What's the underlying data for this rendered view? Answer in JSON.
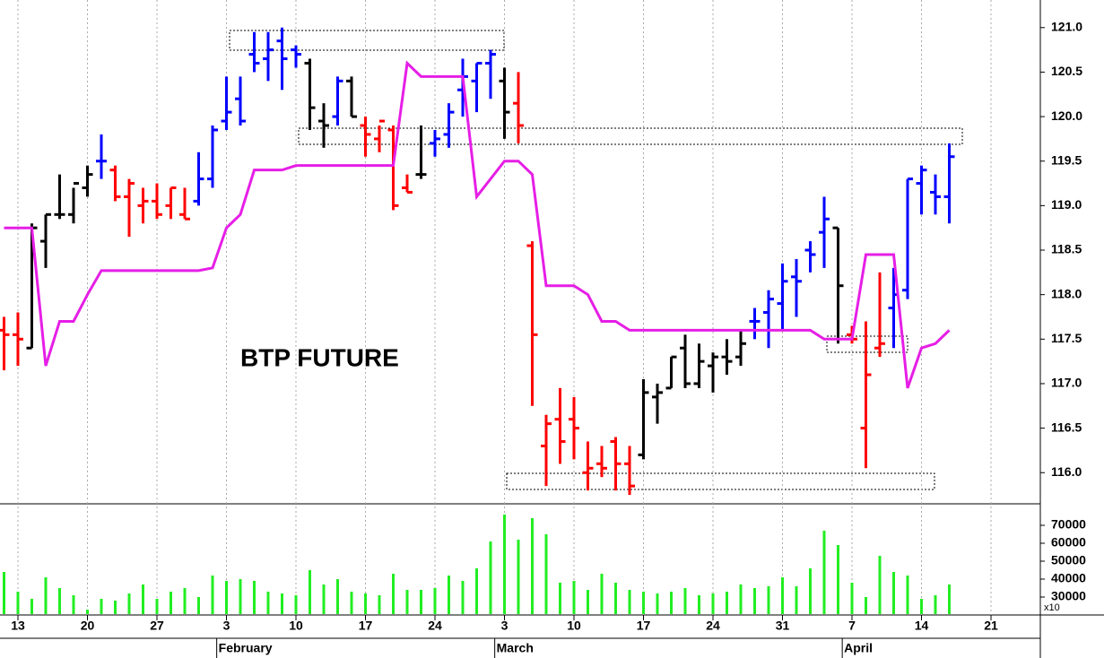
{
  "chart_data": [
    {
      "type": "ohlc",
      "title": "BTP FUTURE",
      "categories": [
        null,
        "13",
        null,
        null,
        null,
        null,
        "20",
        null,
        null,
        null,
        null,
        "27",
        null,
        null,
        null,
        null,
        "3",
        null,
        null,
        null,
        null,
        "10",
        null,
        null,
        null,
        null,
        "17",
        null,
        null,
        null,
        null,
        "24",
        null,
        null,
        null,
        null,
        "3",
        null,
        null,
        null,
        null,
        "10",
        null,
        null,
        null,
        null,
        "17",
        null,
        null,
        null,
        null,
        "24",
        null,
        null,
        null,
        null,
        "31",
        null,
        null,
        null,
        null,
        "7",
        null,
        null,
        null,
        null,
        "14",
        null,
        null,
        null,
        null,
        "21"
      ],
      "months": [
        null,
        null,
        null,
        null,
        null,
        null,
        null,
        null,
        null,
        null,
        null,
        null,
        null,
        null,
        null,
        null,
        "February",
        null,
        null,
        null,
        null,
        null,
        null,
        null,
        null,
        null,
        null,
        null,
        null,
        null,
        null,
        null,
        null,
        null,
        null,
        null,
        "March",
        null,
        null,
        null,
        null,
        null,
        null,
        null,
        null,
        null,
        null,
        null,
        null,
        null,
        null,
        null,
        null,
        null,
        null,
        null,
        null,
        null,
        null,
        null,
        null,
        "April",
        null,
        null,
        null,
        null,
        null,
        null,
        null,
        null,
        null,
        null
      ],
      "open": [
        117.6,
        117.55,
        117.4,
        118.6,
        118.9,
        118.9,
        119.2,
        119.5,
        119.4,
        119.1,
        119.0,
        119.05,
        119.0,
        118.9,
        119.05,
        119.3,
        119.95,
        120.2,
        120.7,
        120.65,
        120.85,
        120.75,
        120.6,
        119.95,
        120.0,
        120.4,
        119.9,
        119.75,
        119.85,
        119.2,
        119.35,
        119.7,
        119.8,
        120.3,
        120.4,
        120.6,
        120.4,
        120.15,
        118.55,
        116.3,
        116.6,
        116.6,
        116.0,
        116.1,
        116.35,
        116.1,
        116.2,
        116.85,
        116.95,
        117.4,
        117.0,
        117.2,
        117.3,
        117.3,
        117.7,
        117.8,
        117.9,
        118.2,
        118.5,
        118.7,
        118.75,
        117.55,
        116.5,
        117.4,
        117.85,
        118.05,
        119.25,
        119.15,
        119.1,
        null,
        null,
        null
      ],
      "high": [
        117.75,
        117.8,
        118.8,
        118.9,
        119.35,
        119.2,
        119.45,
        119.8,
        119.45,
        119.3,
        119.2,
        119.25,
        119.2,
        119.2,
        119.6,
        119.9,
        120.45,
        120.45,
        120.95,
        120.95,
        121.0,
        120.8,
        120.65,
        120.15,
        120.45,
        120.45,
        120.0,
        119.9,
        119.9,
        119.35,
        119.9,
        119.85,
        120.15,
        120.65,
        120.6,
        120.75,
        120.55,
        120.5,
        118.6,
        116.65,
        116.95,
        116.85,
        116.35,
        116.3,
        116.4,
        116.3,
        117.05,
        117.0,
        117.3,
        117.55,
        117.45,
        117.35,
        117.5,
        117.6,
        117.85,
        118.05,
        118.35,
        118.4,
        118.6,
        119.1,
        118.75,
        117.65,
        117.7,
        118.25,
        118.3,
        119.3,
        119.45,
        119.35,
        119.7,
        null,
        null,
        null
      ],
      "low": [
        117.15,
        117.2,
        117.4,
        118.3,
        118.85,
        118.8,
        119.1,
        119.3,
        119.05,
        118.65,
        118.8,
        118.85,
        118.85,
        118.85,
        119.0,
        119.2,
        119.85,
        119.9,
        120.5,
        120.4,
        120.3,
        120.55,
        119.85,
        119.65,
        119.9,
        120.0,
        119.55,
        119.6,
        118.95,
        119.15,
        119.3,
        119.55,
        119.65,
        120.0,
        120.05,
        120.2,
        119.75,
        119.7,
        116.75,
        115.85,
        116.1,
        116.15,
        115.8,
        115.95,
        115.8,
        115.75,
        116.15,
        116.55,
        116.95,
        116.95,
        116.95,
        116.9,
        117.1,
        117.2,
        117.5,
        117.4,
        117.6,
        117.75,
        118.25,
        118.3,
        117.45,
        117.45,
        116.05,
        117.3,
        117.4,
        117.95,
        118.9,
        118.9,
        118.8,
        null,
        null,
        null
      ],
      "close": [
        117.55,
        117.5,
        118.75,
        118.9,
        118.9,
        119.25,
        119.35,
        119.5,
        119.1,
        119.25,
        119.05,
        118.9,
        119.2,
        118.85,
        119.3,
        119.85,
        120.05,
        119.95,
        120.6,
        120.75,
        120.65,
        120.7,
        120.1,
        119.9,
        120.4,
        120.0,
        119.8,
        119.95,
        119.0,
        119.15,
        119.35,
        119.75,
        120.05,
        120.45,
        120.6,
        120.7,
        120.05,
        119.9,
        117.55,
        116.55,
        116.35,
        116.5,
        116.05,
        116.05,
        116.1,
        115.85,
        116.9,
        116.9,
        117.3,
        117.0,
        117.25,
        117.3,
        117.25,
        117.45,
        117.7,
        117.95,
        118.15,
        118.15,
        118.45,
        118.85,
        118.1,
        117.5,
        117.1,
        117.45,
        118.0,
        119.3,
        119.4,
        119.1,
        119.55,
        null,
        null,
        null
      ],
      "colors": [
        "#ff0000",
        "#ff0000",
        "#000000",
        "#000000",
        "#000000",
        "#000000",
        "#000000",
        "#0000ff",
        "#ff0000",
        "#ff0000",
        "#ff0000",
        "#ff0000",
        "#ff0000",
        "#ff0000",
        "#0000ff",
        "#0000ff",
        "#0000ff",
        "#0000ff",
        "#0000ff",
        "#0000ff",
        "#0000ff",
        "#0000ff",
        "#000000",
        "#000000",
        "#0000ff",
        "#000000",
        "#ff0000",
        "#ff0000",
        "#ff0000",
        "#ff0000",
        "#000000",
        "#0000ff",
        "#0000ff",
        "#0000ff",
        "#0000ff",
        "#0000ff",
        "#000000",
        "#ff0000",
        "#ff0000",
        "#ff0000",
        "#ff0000",
        "#ff0000",
        "#ff0000",
        "#ff0000",
        "#ff0000",
        "#ff0000",
        "#000000",
        "#000000",
        "#000000",
        "#000000",
        "#000000",
        "#000000",
        "#000000",
        "#000000",
        "#0000ff",
        "#0000ff",
        "#0000ff",
        "#0000ff",
        "#0000ff",
        "#0000ff",
        "#000000",
        "#ff0000",
        "#ff0000",
        "#ff0000",
        "#0000ff",
        "#0000ff",
        "#0000ff",
        "#0000ff",
        "#0000ff",
        null,
        null,
        null
      ],
      "line": {
        "color": "#e61ee6",
        "values": [
          118.75,
          118.75,
          118.75,
          117.2,
          117.7,
          117.7,
          118.0,
          118.27,
          118.27,
          118.27,
          118.27,
          118.27,
          118.27,
          118.27,
          118.27,
          118.3,
          118.75,
          118.9,
          119.4,
          119.4,
          119.4,
          119.45,
          119.45,
          119.45,
          119.45,
          119.45,
          119.45,
          119.45,
          119.45,
          120.6,
          120.45,
          120.45,
          120.45,
          120.45,
          119.1,
          119.3,
          119.5,
          119.5,
          119.35,
          118.1,
          118.1,
          118.1,
          118.0,
          117.7,
          117.7,
          117.6,
          117.6,
          117.6,
          117.6,
          117.6,
          117.6,
          117.6,
          117.6,
          117.6,
          117.6,
          117.6,
          117.6,
          117.6,
          117.6,
          117.5,
          117.5,
          117.5,
          118.45,
          118.45,
          118.45,
          116.95,
          117.4,
          117.45,
          117.6,
          null,
          null,
          null
        ]
      },
      "ylim": [
        115.65,
        121.31
      ],
      "yticks": [
        {
          "value": 116,
          "label": "116.0"
        },
        {
          "value": 116.5,
          "label": "116.5"
        },
        {
          "value": 117,
          "label": "117.0"
        },
        {
          "value": 117.5,
          "label": "117.5"
        },
        {
          "value": 118,
          "label": "118.0"
        },
        {
          "value": 118.5,
          "label": "118.5"
        },
        {
          "value": 119,
          "label": "119.0"
        },
        {
          "value": 119.5,
          "label": "119.5"
        },
        {
          "value": 120,
          "label": "120.0"
        },
        {
          "value": 120.5,
          "label": "120.5"
        },
        {
          "value": 121,
          "label": "121.0"
        }
      ],
      "grid": true
    },
    {
      "type": "bar",
      "color": "#22ee22",
      "multiplier_label": "x10",
      "values": [
        44000,
        33000,
        29000,
        41000,
        35000,
        31000,
        23000,
        29000,
        28000,
        32000,
        37000,
        29000,
        33000,
        35000,
        30000,
        42000,
        39000,
        40000,
        39000,
        33000,
        32000,
        31000,
        45000,
        37000,
        40000,
        33000,
        32000,
        31000,
        43000,
        34000,
        34000,
        35000,
        42000,
        39000,
        46000,
        61000,
        76000,
        62000,
        74000,
        65000,
        38000,
        39000,
        34000,
        43000,
        38000,
        34000,
        33000,
        32000,
        33000,
        35000,
        31000,
        32000,
        33000,
        37000,
        35000,
        36000,
        41000,
        36000,
        46000,
        67000,
        59000,
        38000,
        30000,
        53000,
        44000,
        42000,
        29000,
        31000,
        37000,
        null,
        null,
        null
      ],
      "ylim": [
        20500,
        81500
      ],
      "yticks": [
        30000,
        40000,
        50000,
        60000,
        70000
      ]
    }
  ]
}
